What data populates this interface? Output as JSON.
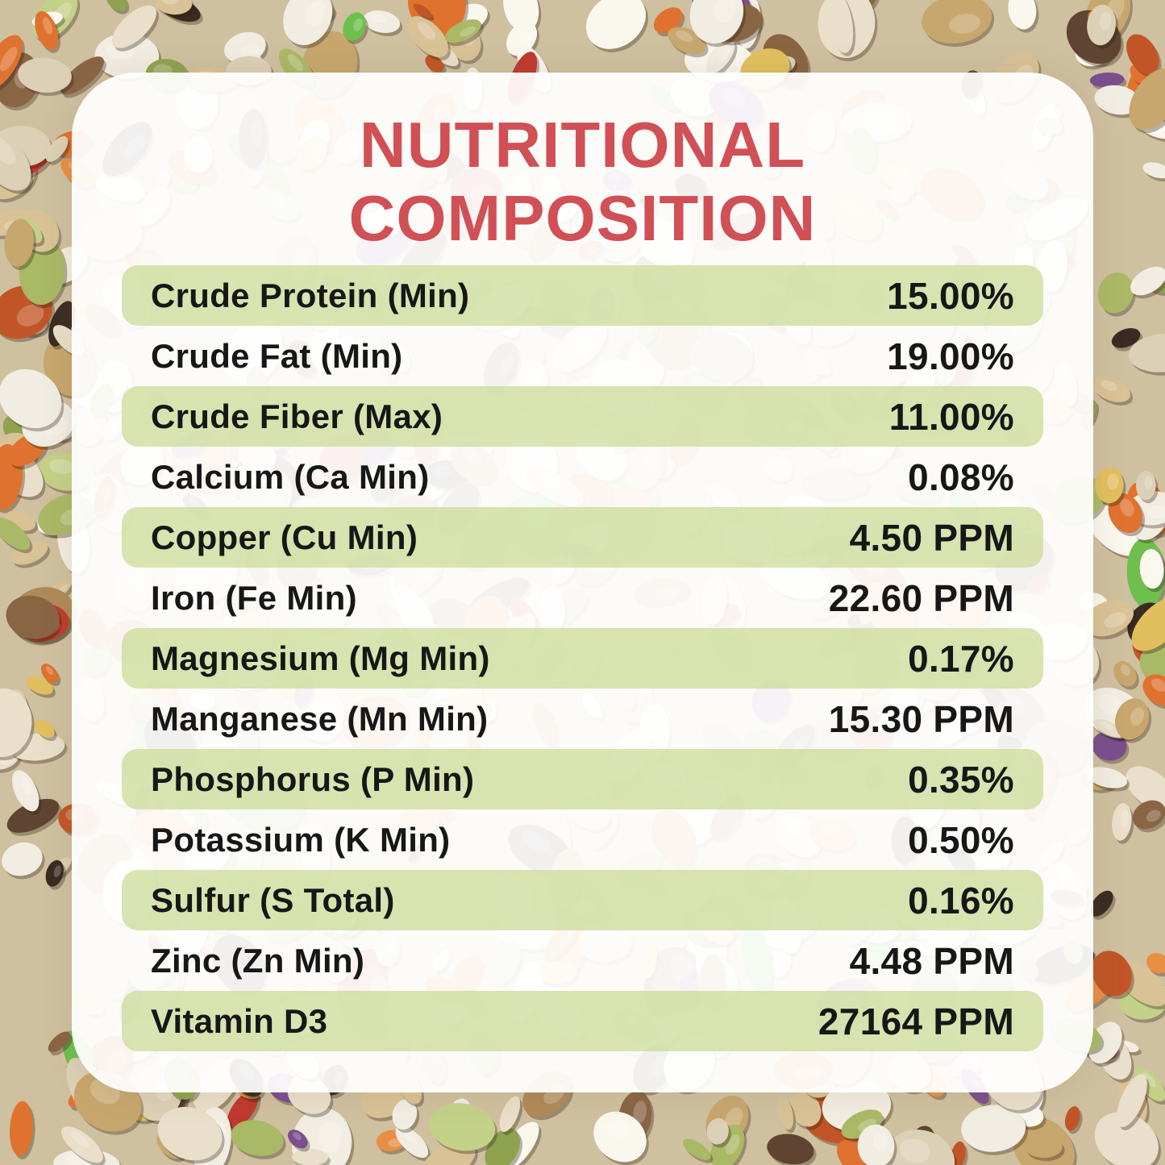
{
  "title": {
    "line1": "NUTRITIONAL",
    "line2": "COMPOSITION"
  },
  "colors": {
    "title_red": "#d05056",
    "row_green_rgba": "rgba(205,221,155,0.78)",
    "text_ink": "#171717",
    "card_white_rgba": "rgba(255,255,255,0.93)"
  },
  "table": {
    "rows": [
      {
        "label": "Crude Protein (Min)",
        "value": "15.00%"
      },
      {
        "label": "Crude Fat (Min)",
        "value": "19.00%"
      },
      {
        "label": "Crude Fiber (Max)",
        "value": "11.00%"
      },
      {
        "label": "Calcium (Ca Min)",
        "value": "0.08%"
      },
      {
        "label": "Copper (Cu Min)",
        "value": "4.50 PPM"
      },
      {
        "label": "Iron (Fe Min)",
        "value": "22.60 PPM"
      },
      {
        "label": "Magnesium (Mg Min)",
        "value": "0.17%"
      },
      {
        "label": "Manganese (Mn Min)",
        "value": "15.30 PPM"
      },
      {
        "label": "Phosphorus (P Min)",
        "value": "0.35%"
      },
      {
        "label": "Potassium (K Min)",
        "value": "0.50%"
      },
      {
        "label": "Sulfur (S Total)",
        "value": "0.16%"
      },
      {
        "label": "Zinc (Zn Min)",
        "value": "4.48 PPM"
      },
      {
        "label": "Vitamin D3",
        "value": "27164 PPM"
      }
    ]
  },
  "background": {
    "description": "photo of mixed bird seed with dried vegetables",
    "base": "#cfc0a0",
    "palette": [
      {
        "c": "#f2ede2",
        "w": 13
      },
      {
        "c": "#faf7ef",
        "w": 8
      },
      {
        "c": "#e9dfca",
        "w": 11
      },
      {
        "c": "#dcd0b6",
        "w": 9
      },
      {
        "c": "#d9c296",
        "w": 8
      },
      {
        "c": "#c7a76e",
        "w": 6
      },
      {
        "c": "#b08a58",
        "w": 4
      },
      {
        "c": "#8a6544",
        "w": 4
      },
      {
        "c": "#5f4431",
        "w": 4
      },
      {
        "c": "#3a2b22",
        "w": 4
      },
      {
        "c": "#e0722f",
        "w": 6
      },
      {
        "c": "#e88f45",
        "w": 4
      },
      {
        "c": "#c25527",
        "w": 3
      },
      {
        "c": "#aab966",
        "w": 5
      },
      {
        "c": "#8fa24f",
        "w": 3
      },
      {
        "c": "#c3d189",
        "w": 3
      },
      {
        "c": "#6fbf4d",
        "w": 3
      },
      {
        "c": "#e2bf5e",
        "w": 3
      },
      {
        "c": "#7b4e8e",
        "w": 2
      },
      {
        "c": "#c0392f",
        "w": 2
      }
    ]
  }
}
